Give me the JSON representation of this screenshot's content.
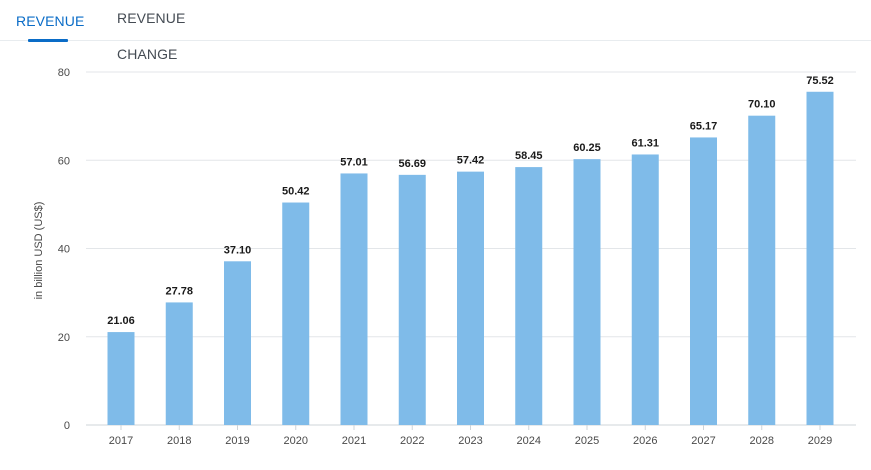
{
  "tabs": [
    {
      "label": "REVENUE",
      "active": true
    },
    {
      "label": "REVENUE CHANGE",
      "active": false
    }
  ],
  "colors": {
    "accent": "#0a6cc7",
    "bar": "#7fbbe9",
    "grid": "#e3e6e9"
  },
  "chart_data": {
    "type": "bar",
    "categories": [
      "2017",
      "2018",
      "2019",
      "2020",
      "2021",
      "2022",
      "2023",
      "2024",
      "2025",
      "2026",
      "2027",
      "2028",
      "2029"
    ],
    "values": [
      21.06,
      27.78,
      37.1,
      50.42,
      57.01,
      56.69,
      57.42,
      58.45,
      60.25,
      61.31,
      65.17,
      70.1,
      75.52
    ],
    "value_labels": [
      "21.06",
      "27.78",
      "37.10",
      "50.42",
      "57.01",
      "56.69",
      "57.42",
      "58.45",
      "60.25",
      "61.31",
      "65.17",
      "70.10",
      "75.52"
    ],
    "title": "",
    "xlabel": "",
    "ylabel": "in billion USD (US$)",
    "ylim": [
      0,
      80
    ],
    "yticks": [
      "0",
      "20",
      "40",
      "60",
      "80"
    ],
    "grid": true,
    "legend": "none"
  }
}
